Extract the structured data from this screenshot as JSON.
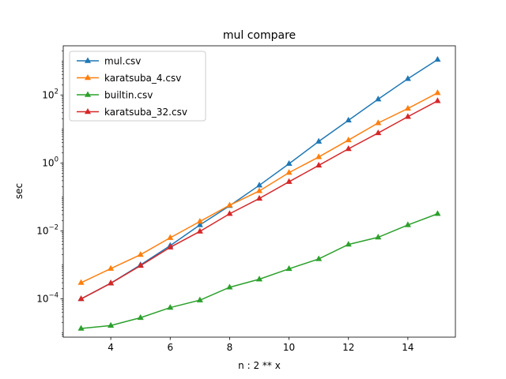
{
  "chart_data": {
    "type": "line",
    "title": "mul compare",
    "xlabel": "n : 2 ** x",
    "ylabel": "sec",
    "yscale": "log",
    "xlim": [
      2.4,
      15.6
    ],
    "ylim": [
      7.5e-06,
      2800
    ],
    "x_ticks": [
      4,
      6,
      8,
      10,
      12,
      14
    ],
    "y_ticks": [
      {
        "value": 0.0001,
        "base": "10",
        "exp": "−4"
      },
      {
        "value": 0.01,
        "base": "10",
        "exp": "−2"
      },
      {
        "value": 1,
        "base": "10",
        "exp": "0"
      },
      {
        "value": 100,
        "base": "10",
        "exp": "2"
      }
    ],
    "x": [
      3,
      4,
      5,
      6,
      7,
      8,
      9,
      10,
      11,
      12,
      13,
      14,
      15
    ],
    "series": [
      {
        "name": "mul.csv",
        "color": "#1f77b4",
        "values": [
          0.0001,
          0.00029,
          0.001,
          0.0037,
          0.015,
          0.055,
          0.22,
          0.95,
          4.3,
          18,
          75,
          300,
          1100
        ]
      },
      {
        "name": "karatsuba_4.csv",
        "color": "#ff7f0e",
        "values": [
          0.0003,
          0.00078,
          0.002,
          0.0063,
          0.019,
          0.057,
          0.15,
          0.52,
          1.5,
          4.7,
          15,
          40,
          115
        ]
      },
      {
        "name": "builtin.csv",
        "color": "#2ca02c",
        "values": [
          1.35e-05,
          1.65e-05,
          2.8e-05,
          5.55e-05,
          9.2e-05,
          0.00022,
          0.00038,
          0.00077,
          0.0015,
          0.004,
          0.0065,
          0.015,
          0.032
        ]
      },
      {
        "name": "karatsuba_32.csv",
        "color": "#d62728",
        "values": [
          0.0001,
          0.00029,
          0.00095,
          0.0033,
          0.0097,
          0.032,
          0.09,
          0.28,
          0.85,
          2.6,
          7.6,
          23,
          67
        ]
      }
    ],
    "legend_position": "top-left",
    "grid": false
  }
}
